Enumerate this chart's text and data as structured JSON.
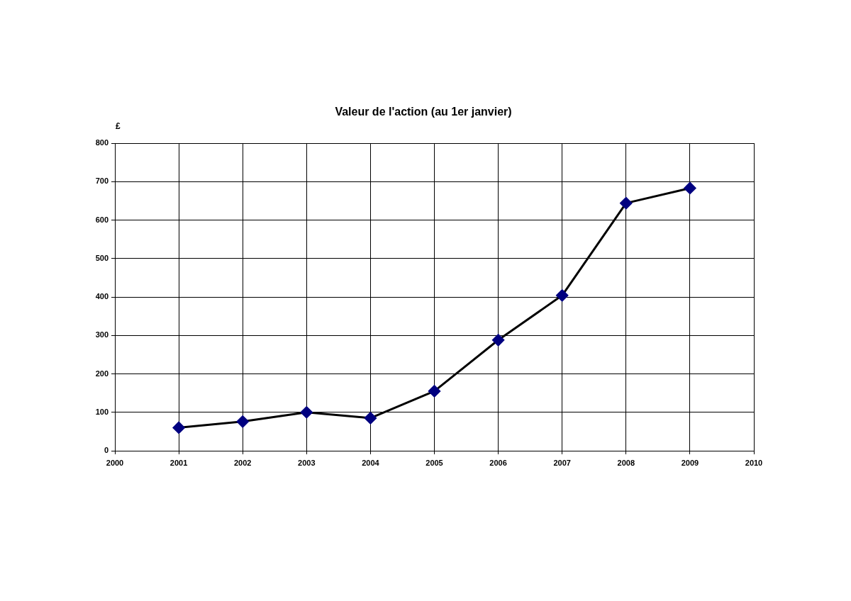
{
  "chart_data": {
    "type": "line",
    "title": "Valeur de l'action (au 1er janvier)",
    "ylabel": "£",
    "x": [
      2001,
      2002,
      2003,
      2004,
      2005,
      2006,
      2007,
      2008,
      2009
    ],
    "series": [
      {
        "color": "#000000",
        "colors": [
          "#000080",
          "#000080",
          "#000080",
          "#000080",
          "#000080",
          "#000080",
          "#000080",
          "#000080",
          "#000080"
        ],
        "values": [
          60,
          76,
          100,
          85,
          155,
          288,
          404,
          644,
          683
        ]
      }
    ],
    "xlim": [
      2000,
      2010
    ],
    "xticks": [
      2000,
      2001,
      2002,
      2003,
      2004,
      2005,
      2006,
      2007,
      2008,
      2009,
      2010
    ],
    "ylim": [
      0,
      800
    ],
    "yticks": [
      0,
      100,
      200,
      300,
      400,
      500,
      600,
      700,
      800
    ],
    "grid": true,
    "marker": "diamond",
    "line_style": "solid"
  }
}
